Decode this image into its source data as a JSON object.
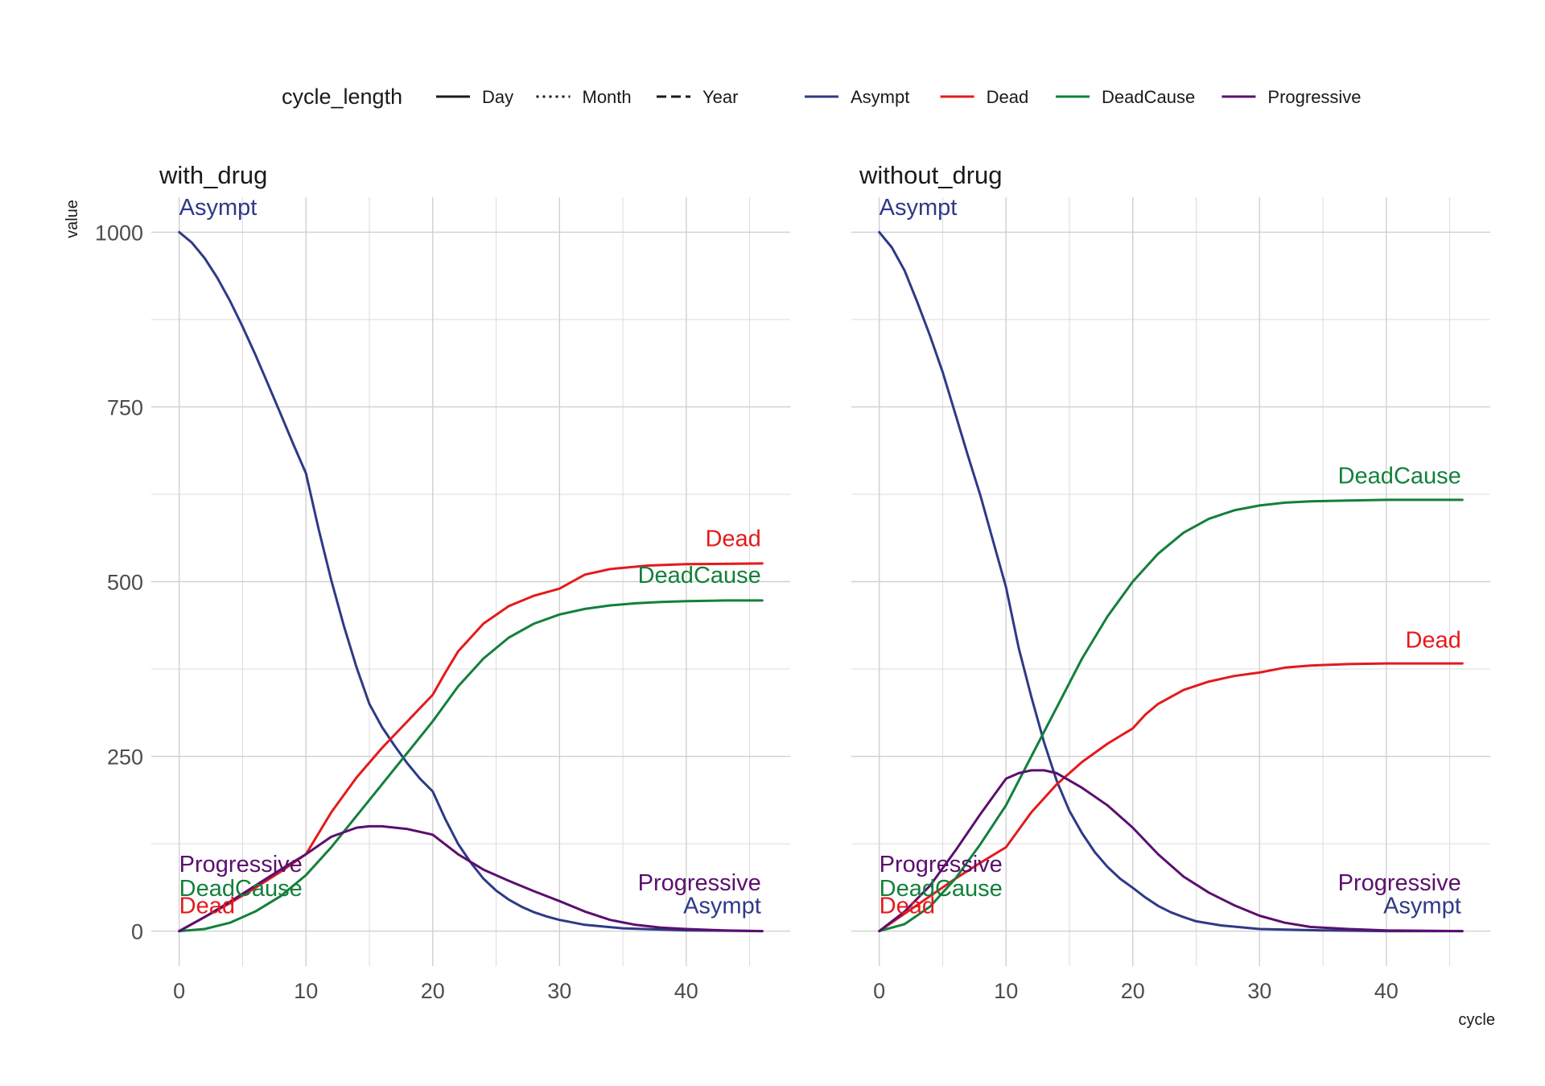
{
  "legend": {
    "linetype_title": "cycle_length",
    "linetypes": [
      {
        "label": "Day",
        "dash": "solid"
      },
      {
        "label": "Month",
        "dash": "dotted"
      },
      {
        "label": "Year",
        "dash": "dashed"
      }
    ],
    "colors": [
      {
        "label": "Asympt",
        "color": "#2e3a87"
      },
      {
        "label": "Dead",
        "color": "#e41a1c"
      },
      {
        "label": "DeadCause",
        "color": "#13803b"
      },
      {
        "label": "Progressive",
        "color": "#5c0f6e"
      }
    ]
  },
  "chart_data": {
    "type": "line",
    "ylabel": "value",
    "xlabel": "cycle",
    "xlim": [
      -2.2,
      48.2
    ],
    "ylim": [
      -50,
      1050
    ],
    "x_ticks": [
      0,
      10,
      20,
      30,
      40
    ],
    "y_ticks": [
      0,
      250,
      500,
      750,
      1000
    ],
    "grid": true,
    "legend_position": "top",
    "colors": {
      "Asympt": "#2e3a87",
      "Dead": "#e41a1c",
      "DeadCause": "#13803b",
      "Progressive": "#5c0f6e"
    },
    "panels": [
      {
        "title": "with_drug",
        "series": [
          {
            "name": "Asympt",
            "points": [
              [
                0,
                1000
              ],
              [
                1,
                985
              ],
              [
                2,
                963
              ],
              [
                3,
                935
              ],
              [
                4,
                902
              ],
              [
                5,
                865
              ],
              [
                6,
                825
              ],
              [
                7,
                783
              ],
              [
                8,
                740
              ],
              [
                9,
                697
              ],
              [
                10,
                655
              ],
              [
                11,
                575
              ],
              [
                12,
                502
              ],
              [
                13,
                436
              ],
              [
                14,
                377
              ],
              [
                15,
                325
              ],
              [
                16,
                292
              ],
              [
                17,
                265
              ],
              [
                18,
                240
              ],
              [
                19,
                218
              ],
              [
                20,
                200
              ],
              [
                21,
                160
              ],
              [
                22,
                125
              ],
              [
                23,
                98
              ],
              [
                24,
                75
              ],
              [
                25,
                58
              ],
              [
                26,
                45
              ],
              [
                27,
                35
              ],
              [
                28,
                27
              ],
              [
                29,
                21
              ],
              [
                30,
                16
              ],
              [
                32,
                9
              ],
              [
                35,
                4
              ],
              [
                40,
                1
              ],
              [
                46,
                0
              ]
            ]
          },
          {
            "name": "Dead",
            "points": [
              [
                0,
                0
              ],
              [
                2,
                20
              ],
              [
                4,
                40
              ],
              [
                6,
                62
              ],
              [
                8,
                85
              ],
              [
                10,
                110
              ],
              [
                12,
                170
              ],
              [
                14,
                220
              ],
              [
                16,
                262
              ],
              [
                18,
                300
              ],
              [
                20,
                338
              ],
              [
                21,
                370
              ],
              [
                22,
                400
              ],
              [
                24,
                440
              ],
              [
                26,
                465
              ],
              [
                28,
                480
              ],
              [
                30,
                490
              ],
              [
                31,
                500
              ],
              [
                32,
                510
              ],
              [
                34,
                518
              ],
              [
                37,
                523
              ],
              [
                40,
                525
              ],
              [
                46,
                526
              ]
            ]
          },
          {
            "name": "DeadCause",
            "points": [
              [
                0,
                0
              ],
              [
                2,
                3
              ],
              [
                4,
                12
              ],
              [
                6,
                28
              ],
              [
                8,
                50
              ],
              [
                10,
                80
              ],
              [
                12,
                120
              ],
              [
                14,
                165
              ],
              [
                16,
                210
              ],
              [
                18,
                255
              ],
              [
                20,
                300
              ],
              [
                22,
                350
              ],
              [
                24,
                390
              ],
              [
                26,
                420
              ],
              [
                28,
                440
              ],
              [
                30,
                453
              ],
              [
                32,
                461
              ],
              [
                34,
                466
              ],
              [
                36,
                469
              ],
              [
                38,
                471
              ],
              [
                40,
                472
              ],
              [
                43,
                473
              ],
              [
                46,
                473
              ]
            ]
          },
          {
            "name": "Progressive",
            "points": [
              [
                0,
                0
              ],
              [
                2,
                20
              ],
              [
                4,
                42
              ],
              [
                6,
                65
              ],
              [
                8,
                88
              ],
              [
                10,
                110
              ],
              [
                12,
                135
              ],
              [
                14,
                148
              ],
              [
                15,
                150
              ],
              [
                16,
                150
              ],
              [
                18,
                146
              ],
              [
                20,
                138
              ],
              [
                22,
                110
              ],
              [
                24,
                88
              ],
              [
                26,
                72
              ],
              [
                28,
                57
              ],
              [
                30,
                43
              ],
              [
                32,
                28
              ],
              [
                34,
                16
              ],
              [
                36,
                9
              ],
              [
                38,
                5
              ],
              [
                40,
                3
              ],
              [
                43,
                1
              ],
              [
                46,
                0
              ]
            ]
          }
        ],
        "end_labels": [
          {
            "text": "Asympt",
            "at": [
              3.5,
              1036
            ]
          },
          {
            "text": "Progressive",
            "at": [
              4.2,
              96
            ]
          },
          {
            "text": "DeadCause",
            "at": [
              4.2,
              62
            ]
          },
          {
            "text": "Dead",
            "at": [
              2.3,
              37
            ]
          },
          {
            "text": "Dead",
            "at": [
              45.9,
              562
            ]
          },
          {
            "text": "DeadCause",
            "at": [
              45.9,
              510
            ]
          },
          {
            "text": "Progressive",
            "at": [
              45.9,
              70
            ]
          },
          {
            "text": "Asympt",
            "at": [
              45.9,
              37
            ]
          }
        ]
      },
      {
        "title": "without_drug",
        "series": [
          {
            "name": "Asympt",
            "points": [
              [
                0,
                1000
              ],
              [
                1,
                978
              ],
              [
                2,
                945
              ],
              [
                3,
                900
              ],
              [
                4,
                852
              ],
              [
                5,
                800
              ],
              [
                6,
                740
              ],
              [
                7,
                680
              ],
              [
                8,
                622
              ],
              [
                9,
                557
              ],
              [
                10,
                492
              ],
              [
                11,
                405
              ],
              [
                12,
                335
              ],
              [
                13,
                270
              ],
              [
                14,
                215
              ],
              [
                15,
                172
              ],
              [
                16,
                140
              ],
              [
                17,
                113
              ],
              [
                18,
                92
              ],
              [
                19,
                75
              ],
              [
                20,
                62
              ],
              [
                21,
                48
              ],
              [
                22,
                36
              ],
              [
                23,
                27
              ],
              [
                24,
                20
              ],
              [
                25,
                14
              ],
              [
                27,
                8
              ],
              [
                30,
                3
              ],
              [
                35,
                1
              ],
              [
                40,
                0
              ],
              [
                46,
                0
              ]
            ]
          },
          {
            "name": "Dead",
            "points": [
              [
                0,
                0
              ],
              [
                2,
                25
              ],
              [
                4,
                50
              ],
              [
                6,
                75
              ],
              [
                8,
                98
              ],
              [
                10,
                120
              ],
              [
                12,
                170
              ],
              [
                14,
                210
              ],
              [
                16,
                242
              ],
              [
                18,
                268
              ],
              [
                20,
                290
              ],
              [
                21,
                310
              ],
              [
                22,
                325
              ],
              [
                24,
                345
              ],
              [
                26,
                357
              ],
              [
                28,
                365
              ],
              [
                30,
                370
              ],
              [
                32,
                377
              ],
              [
                34,
                380
              ],
              [
                37,
                382
              ],
              [
                40,
                383
              ],
              [
                46,
                383
              ]
            ]
          },
          {
            "name": "DeadCause",
            "points": [
              [
                0,
                0
              ],
              [
                2,
                10
              ],
              [
                4,
                35
              ],
              [
                6,
                75
              ],
              [
                8,
                125
              ],
              [
                10,
                180
              ],
              [
                12,
                250
              ],
              [
                14,
                320
              ],
              [
                16,
                390
              ],
              [
                18,
                450
              ],
              [
                20,
                500
              ],
              [
                22,
                540
              ],
              [
                24,
                570
              ],
              [
                26,
                590
              ],
              [
                28,
                602
              ],
              [
                30,
                609
              ],
              [
                32,
                613
              ],
              [
                34,
                615
              ],
              [
                37,
                616
              ],
              [
                40,
                617
              ],
              [
                46,
                617
              ]
            ]
          },
          {
            "name": "Progressive",
            "points": [
              [
                0,
                0
              ],
              [
                2,
                28
              ],
              [
                4,
                65
              ],
              [
                6,
                115
              ],
              [
                8,
                168
              ],
              [
                10,
                218
              ],
              [
                11,
                226
              ],
              [
                12,
                230
              ],
              [
                13,
                230
              ],
              [
                14,
                226
              ],
              [
                16,
                205
              ],
              [
                18,
                180
              ],
              [
                20,
                148
              ],
              [
                22,
                110
              ],
              [
                24,
                78
              ],
              [
                26,
                55
              ],
              [
                28,
                37
              ],
              [
                30,
                22
              ],
              [
                32,
                12
              ],
              [
                34,
                6
              ],
              [
                37,
                3
              ],
              [
                40,
                1
              ],
              [
                46,
                0
              ]
            ]
          }
        ],
        "end_labels": [
          {
            "text": "Asympt",
            "at": [
              3.5,
              1036
            ]
          },
          {
            "text": "Progressive",
            "at": [
              4.2,
              96
            ]
          },
          {
            "text": "DeadCause",
            "at": [
              4.2,
              62
            ]
          },
          {
            "text": "Dead",
            "at": [
              2.3,
              37
            ]
          },
          {
            "text": "DeadCause",
            "at": [
              45.9,
              652
            ]
          },
          {
            "text": "Progressive",
            "at": [
              45.9,
              70
            ]
          },
          {
            "text": "Dead",
            "at": [
              45.9,
              417
            ]
          },
          {
            "text": "Asympt",
            "at": [
              45.9,
              37
            ]
          }
        ]
      }
    ]
  }
}
